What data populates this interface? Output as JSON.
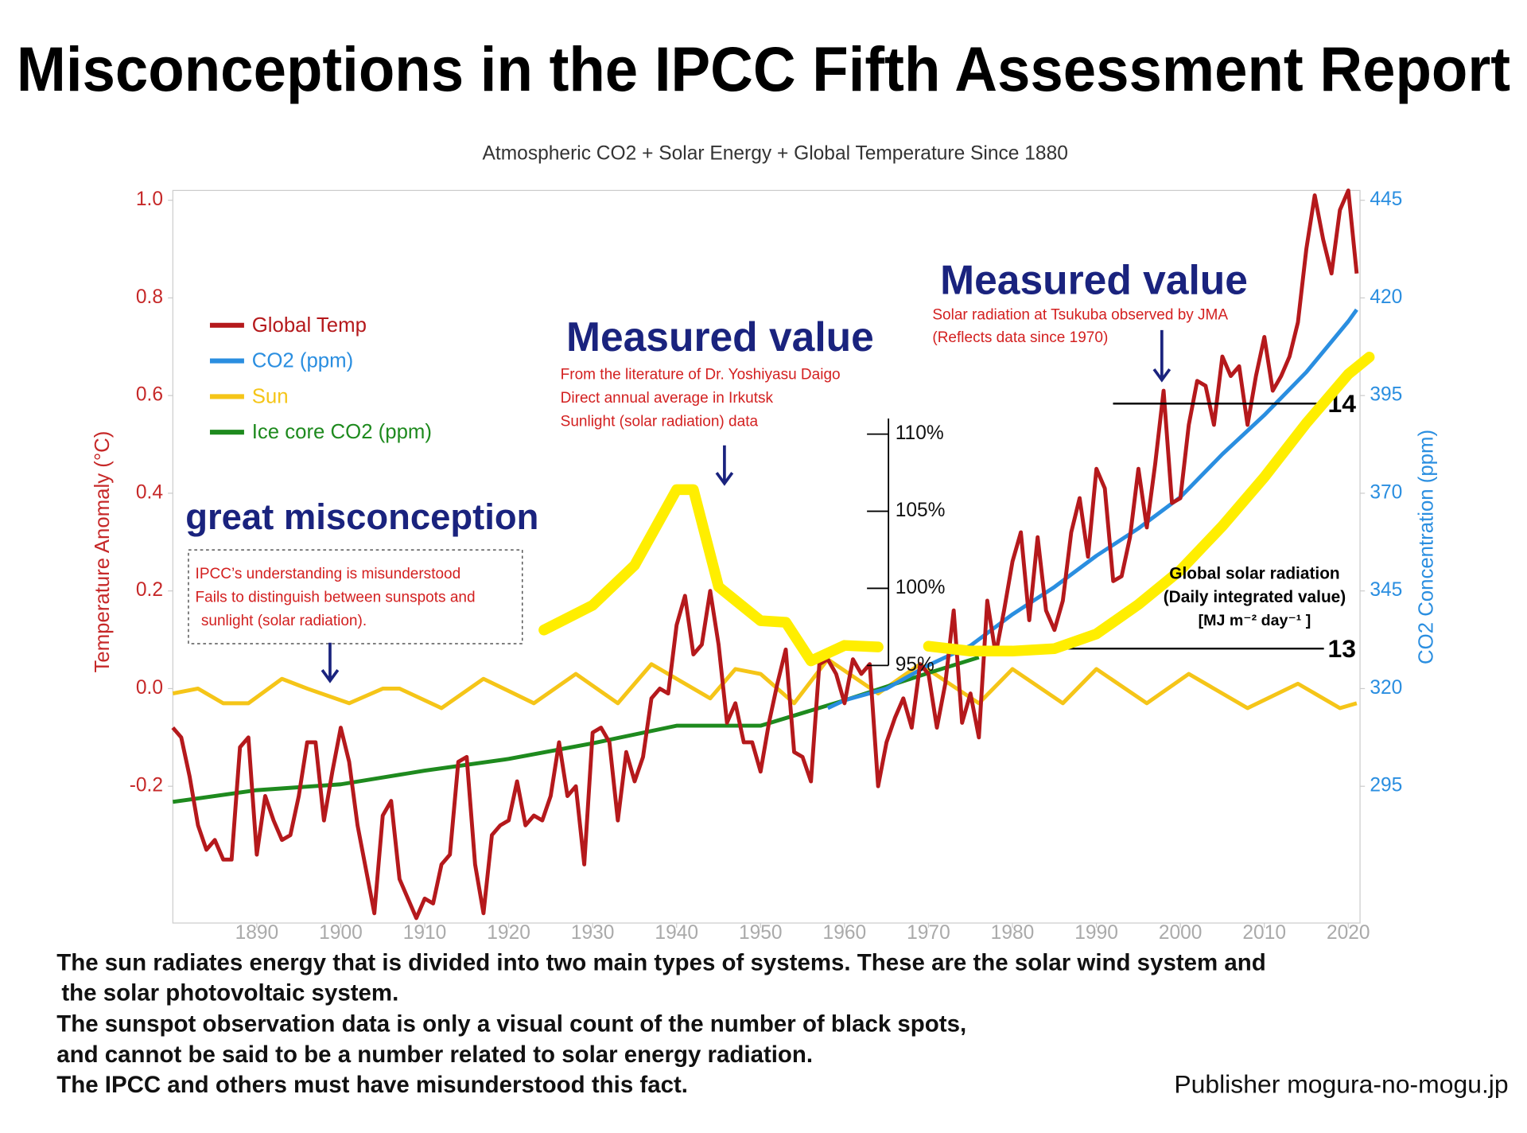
{
  "chart_data": {
    "type": "line",
    "title": "Misconceptions in the IPCC Fifth Assessment Report",
    "subtitle": "Atmospheric CO2 + Solar Energy + Global Temperature Since 1880",
    "y_label": "Temperature Anomaly (°C)",
    "y2_label": "CO2 Concentration (ppm)",
    "xlim": [
      1880,
      2021.4
    ],
    "xticks": [
      1890,
      1900,
      1910,
      1920,
      1930,
      1940,
      1950,
      1960,
      1970,
      1980,
      1990,
      2000,
      2010,
      2020
    ],
    "ylim": [
      -0.48,
      1.02
    ],
    "yticks": [
      {
        "value": 1,
        "label": "1.0"
      },
      0.8,
      0.6,
      0.4,
      0.2,
      {
        "value": 0,
        "label": "0.0"
      },
      -0.2
    ],
    "y2lim": [
      260,
      447.5
    ],
    "y2ticks": [
      445,
      420,
      395,
      370,
      345,
      320,
      295
    ],
    "series": [
      {
        "name": "Global Temp",
        "color": "#b5191c",
        "x": [
          1880,
          1881,
          1882,
          1883,
          1884,
          1885,
          1886,
          1887,
          1888,
          1889,
          1890,
          1891,
          1892,
          1893,
          1894,
          1895,
          1896,
          1897,
          1898,
          1899,
          1900,
          1901,
          1902,
          1903,
          1904,
          1905,
          1906,
          1907,
          1908,
          1909,
          1910,
          1911,
          1912,
          1913,
          1914,
          1915,
          1916,
          1917,
          1918,
          1919,
          1920,
          1921,
          1922,
          1923,
          1924,
          1925,
          1926,
          1927,
          1928,
          1929,
          1930,
          1931,
          1932,
          1933,
          1934,
          1935,
          1936,
          1937,
          1938,
          1939,
          1940,
          1941,
          1942,
          1943,
          1944,
          1945,
          1946,
          1947,
          1948,
          1949,
          1950,
          1951,
          1952,
          1953,
          1954,
          1955,
          1956,
          1957,
          1958,
          1959,
          1960,
          1961,
          1962,
          1963,
          1964,
          1965,
          1966,
          1967,
          1968,
          1969,
          1970,
          1971,
          1972,
          1973,
          1974,
          1975,
          1976,
          1977,
          1978,
          1979,
          1980,
          1981,
          1982,
          1983,
          1984,
          1985,
          1986,
          1987,
          1988,
          1989,
          1990,
          1991,
          1992,
          1993,
          1994,
          1995,
          1996,
          1997,
          1998,
          1999,
          2000,
          2001,
          2002,
          2003,
          2004,
          2005,
          2006,
          2007,
          2008,
          2009,
          2010,
          2011,
          2012,
          2013,
          2014,
          2015,
          2016,
          2017,
          2018,
          2019,
          2020,
          2021
        ],
        "values": [
          -0.08,
          -0.1,
          -0.18,
          -0.28,
          -0.33,
          -0.31,
          -0.35,
          -0.35,
          -0.12,
          -0.1,
          -0.34,
          -0.22,
          -0.27,
          -0.31,
          -0.3,
          -0.22,
          -0.11,
          -0.11,
          -0.27,
          -0.17,
          -0.08,
          -0.15,
          -0.28,
          -0.37,
          -0.46,
          -0.26,
          -0.23,
          -0.39,
          -0.43,
          -0.47,
          -0.43,
          -0.44,
          -0.36,
          -0.34,
          -0.15,
          -0.14,
          -0.36,
          -0.46,
          -0.3,
          -0.28,
          -0.27,
          -0.19,
          -0.28,
          -0.26,
          -0.27,
          -0.22,
          -0.11,
          -0.22,
          -0.2,
          -0.36,
          -0.09,
          -0.08,
          -0.11,
          -0.27,
          -0.13,
          -0.19,
          -0.14,
          -0.02,
          0,
          -0.01,
          0.13,
          0.19,
          0.07,
          0.09,
          0.2,
          0.09,
          -0.07,
          -0.03,
          -0.11,
          -0.11,
          -0.17,
          -0.07,
          0.01,
          0.08,
          -0.13,
          -0.14,
          -0.19,
          0.05,
          0.06,
          0.03,
          -0.03,
          0.06,
          0.03,
          0.05,
          -0.2,
          -0.11,
          -0.06,
          -0.02,
          -0.08,
          0.05,
          0.03,
          -0.08,
          0.01,
          0.16,
          -0.07,
          -0.01,
          -0.1,
          0.18,
          0.07,
          0.16,
          0.26,
          0.32,
          0.14,
          0.31,
          0.16,
          0.12,
          0.18,
          0.32,
          0.39,
          0.27,
          0.45,
          0.41,
          0.22,
          0.23,
          0.31,
          0.45,
          0.33,
          0.46,
          0.61,
          0.38,
          0.39,
          0.54,
          0.63,
          0.62,
          0.54,
          0.68,
          0.64,
          0.66,
          0.54,
          0.64,
          0.72,
          0.61,
          0.64,
          0.68,
          0.75,
          0.9,
          1.01,
          0.92,
          0.85,
          0.98,
          1.02,
          0.85
        ]
      },
      {
        "name": "CO2 (ppm)",
        "color": "#2a8ee0",
        "axis": "y2",
        "x": [
          1958,
          1960,
          1965,
          1970,
          1975,
          1980,
          1985,
          1990,
          1995,
          2000,
          2005,
          2010,
          2015,
          2020,
          2021
        ],
        "values": [
          315,
          317,
          320,
          326,
          331,
          339,
          346,
          354,
          361,
          369,
          380,
          390,
          401,
          414,
          417
        ]
      },
      {
        "name": "Sun",
        "color": "#f5c518",
        "x": [
          1880,
          1883,
          1886,
          1889,
          1893,
          1896,
          1901,
          1905,
          1907,
          1912,
          1917,
          1923,
          1928,
          1933,
          1937,
          1944,
          1947,
          1950,
          1954,
          1958,
          1964,
          1969,
          1976,
          1980,
          1986,
          1990,
          1996,
          2001,
          2008,
          2014,
          2019,
          2021
        ],
        "values": [
          -0.01,
          0,
          -0.03,
          -0.03,
          0.02,
          0,
          -0.03,
          0,
          0,
          -0.04,
          0.02,
          -0.03,
          0.03,
          -0.03,
          0.05,
          -0.02,
          0.04,
          0.03,
          -0.03,
          0.06,
          -0.01,
          0.05,
          -0.03,
          0.04,
          -0.03,
          0.04,
          -0.03,
          0.03,
          -0.04,
          0.01,
          -0.04,
          -0.03
        ]
      },
      {
        "name": "Ice core CO2 (ppm)",
        "color": "#1e8a1e",
        "axis": "y2",
        "x": [
          1880,
          1890,
          1900,
          1910,
          1920,
          1930,
          1940,
          1950,
          1960,
          1970,
          1976
        ],
        "values": [
          291,
          294,
          295.5,
          299,
          302,
          306,
          310.5,
          310.5,
          317,
          324,
          328
        ]
      }
    ],
    "measured_series": [
      {
        "color": "#ffee00",
        "lim": [
          78.3,
          125.8
        ],
        "ticks": [
          {
            "value": 110,
            "label": "110%"
          },
          {
            "value": 105,
            "label": "105%"
          },
          {
            "value": 100,
            "label": "100%"
          },
          {
            "value": 95,
            "label": "95%"
          }
        ],
        "x": [
          1924.2,
          1930,
          1935,
          1940,
          1942,
          1945,
          1950,
          1953,
          1956,
          1960,
          1964
        ],
        "values": [
          97.3,
          98.9,
          101.5,
          106.4,
          106.4,
          100.1,
          97.9,
          97.8,
          95.3,
          96.3,
          96.2
        ]
      },
      {
        "color": "#ffee00",
        "lim": [
          11.88,
          14.87
        ],
        "ticks": [
          14,
          13
        ],
        "x": [
          1970,
          1975,
          1980,
          1985,
          1990,
          1995,
          2000,
          2005,
          2010,
          2015,
          2020,
          2022.5
        ],
        "values": [
          13.01,
          12.99,
          12.99,
          13,
          13.06,
          13.18,
          13.32,
          13.5,
          13.7,
          13.92,
          14.12,
          14.19
        ]
      }
    ],
    "annotations": {
      "irkutsk": {
        "heading": "Measured value",
        "lines": [
          "From the literature of Dr. Yoshiyasu Daigo",
          "Direct annual average in Irkutsk",
          "Sunlight (solar radiation) data"
        ]
      },
      "tsukuba": {
        "heading": "Measured value",
        "lines": [
          "Solar radiation at Tsukuba observed by JMA",
          "(Reflects data since 1970)"
        ]
      },
      "misconception": {
        "heading": "great misconception",
        "lines": [
          "IPCC’s understanding is misunderstood",
          "Fails to distinguish between sunspots and",
          "sunlight (solar radiation)."
        ]
      },
      "solar_axis_label": [
        "Global solar radiation",
        "(Daily integrated value)",
        "[MJ m⁻²  day⁻¹ ]"
      ]
    }
  },
  "notes": [
    "The sun radiates energy that is divided into two main types of systems. These are the solar wind system and",
    "the solar photovoltaic system.",
    "The sunspot observation data is only a visual count of the number of black spots,",
    "and cannot be said to be a number related to solar energy radiation.",
    "The IPCC and others must have misunderstood this fact."
  ],
  "publisher": "Publisher mogura-no-mogu.jp"
}
